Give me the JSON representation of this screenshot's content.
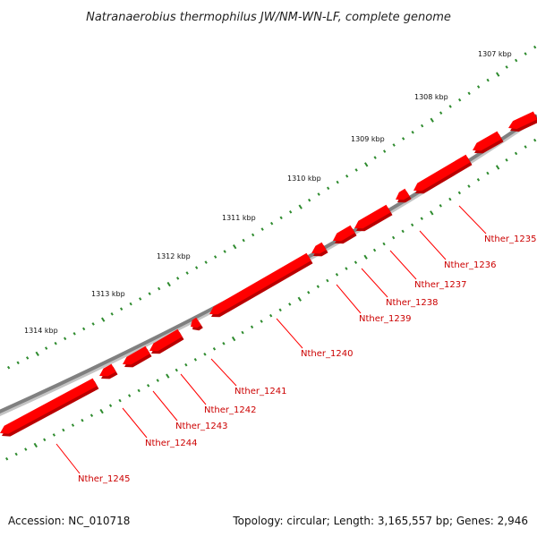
{
  "title": "Natranaerobius thermophilus JW/NM-WN-LF, complete genome",
  "accession": "Accession: NC_010718",
  "topology": "Topology: circular; Length: 3,165,557 bp; Genes: 2,946",
  "colors": {
    "gene": "#ff0000",
    "gene_shadow": "#b80000",
    "gene_label": "#cc0000",
    "backbone": "#808080",
    "tick": "#2e8b2e"
  },
  "scale_ticks": [
    {
      "label": "1307 kbp",
      "kbp": 1307
    },
    {
      "label": "1308 kbp",
      "kbp": 1308
    },
    {
      "label": "1309 kbp",
      "kbp": 1309
    },
    {
      "label": "1310 kbp",
      "kbp": 1310
    },
    {
      "label": "1311 kbp",
      "kbp": 1311
    },
    {
      "label": "1312 kbp",
      "kbp": 1312
    },
    {
      "label": "1313 kbp",
      "kbp": 1313
    },
    {
      "label": "1314 kbp",
      "kbp": 1314
    }
  ],
  "genes": [
    {
      "label": "Nther_1235"
    },
    {
      "label": "Nther_1236"
    },
    {
      "label": "Nther_1237"
    },
    {
      "label": "Nther_1238"
    },
    {
      "label": "Nther_1239"
    },
    {
      "label": "Nther_1240"
    },
    {
      "label": "Nther_1241"
    },
    {
      "label": "Nther_1242"
    },
    {
      "label": "Nther_1243"
    },
    {
      "label": "Nther_1244"
    },
    {
      "label": "Nther_1245"
    }
  ]
}
